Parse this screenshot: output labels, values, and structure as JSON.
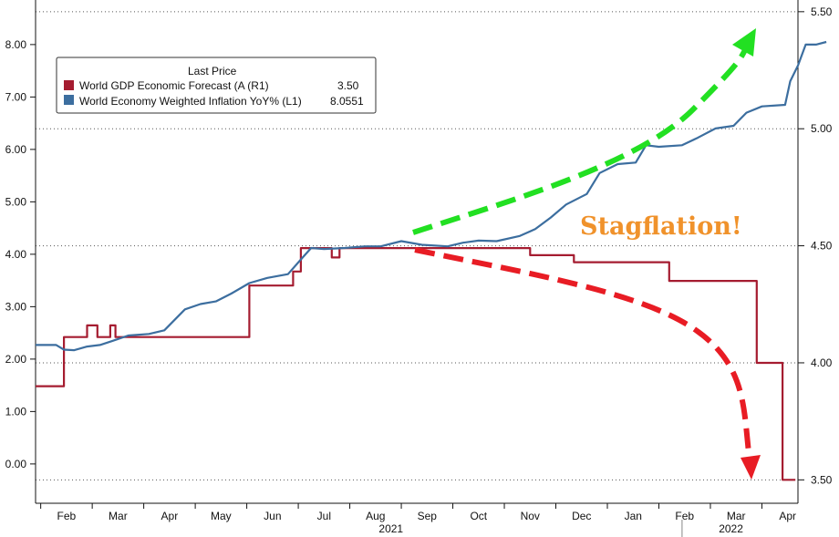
{
  "chart_data": {
    "type": "line",
    "legend": {
      "title": "Last Price",
      "placement": "top-left",
      "entries": [
        {
          "name": "World GDP Economic Forecast (A  (R1)",
          "value": "3.50",
          "color": "#a51c30"
        },
        {
          "name": "World Economy Weighted Inflation YoY%  (L1)",
          "value": "8.0551",
          "color": "#3c6e9f"
        }
      ]
    },
    "y_left": {
      "ticks": [
        "0.00",
        "1.00",
        "2.00",
        "3.00",
        "4.00",
        "5.00",
        "6.00",
        "7.00",
        "8.00"
      ],
      "range": [
        -0.75,
        8.85
      ]
    },
    "y_right": {
      "ticks": [
        "3.50",
        "4.00",
        "4.50",
        "5.00",
        "5.50"
      ],
      "range": [
        3.4,
        5.55
      ]
    },
    "x_axis": {
      "month_ticks": [
        "Feb",
        "Mar",
        "Apr",
        "May",
        "Jun",
        "Jul",
        "Aug",
        "Sep",
        "Oct",
        "Nov",
        "Dec",
        "Jan",
        "Feb",
        "Mar",
        "Apr"
      ],
      "years": [
        {
          "label": "2021",
          "month_index": 6.3
        },
        {
          "label": "2022",
          "month_index": 12.9
        }
      ],
      "range": [
        -0.6,
        14.2
      ],
      "year_divider_month": 11.95
    },
    "grid": {
      "horizontal_dotted": true,
      "vertical": false
    },
    "series": [
      {
        "name": "World GDP Economic Forecast (A  (R1)",
        "axis": "right",
        "color": "#a51c30",
        "step": true,
        "points": [
          [
            -0.6,
            3.9
          ],
          [
            -0.05,
            4.11
          ],
          [
            0.4,
            4.16
          ],
          [
            0.6,
            4.11
          ],
          [
            0.85,
            4.16
          ],
          [
            0.95,
            4.11
          ],
          [
            3.55,
            4.33
          ],
          [
            4.4,
            4.39
          ],
          [
            4.55,
            4.49
          ],
          [
            5.0,
            4.49
          ],
          [
            5.15,
            4.45
          ],
          [
            5.3,
            4.49
          ],
          [
            8.1,
            4.49
          ],
          [
            9.0,
            4.46
          ],
          [
            9.85,
            4.43
          ],
          [
            11.7,
            4.35
          ],
          [
            12.9,
            4.35
          ],
          [
            13.4,
            4.0
          ],
          [
            13.9,
            3.5
          ],
          [
            14.15,
            3.5
          ]
        ]
      },
      {
        "name": "World Economy Weighted Inflation YoY%  (L1)",
        "axis": "left",
        "color": "#3c6e9f",
        "step": false,
        "points": [
          [
            -0.6,
            2.27
          ],
          [
            -0.2,
            2.27
          ],
          [
            -0.05,
            2.18
          ],
          [
            0.15,
            2.17
          ],
          [
            0.4,
            2.24
          ],
          [
            0.65,
            2.27
          ],
          [
            0.9,
            2.35
          ],
          [
            1.2,
            2.45
          ],
          [
            1.6,
            2.48
          ],
          [
            1.9,
            2.55
          ],
          [
            2.1,
            2.75
          ],
          [
            2.3,
            2.95
          ],
          [
            2.6,
            3.05
          ],
          [
            2.9,
            3.1
          ],
          [
            3.2,
            3.25
          ],
          [
            3.55,
            3.45
          ],
          [
            3.9,
            3.55
          ],
          [
            4.3,
            3.62
          ],
          [
            4.55,
            3.9
          ],
          [
            4.75,
            4.12
          ],
          [
            5.0,
            4.1
          ],
          [
            5.4,
            4.12
          ],
          [
            5.8,
            4.15
          ],
          [
            6.1,
            4.15
          ],
          [
            6.5,
            4.25
          ],
          [
            6.9,
            4.18
          ],
          [
            7.4,
            4.15
          ],
          [
            7.7,
            4.22
          ],
          [
            8.0,
            4.26
          ],
          [
            8.35,
            4.25
          ],
          [
            8.8,
            4.35
          ],
          [
            9.1,
            4.48
          ],
          [
            9.4,
            4.7
          ],
          [
            9.7,
            4.95
          ],
          [
            10.1,
            5.15
          ],
          [
            10.35,
            5.55
          ],
          [
            10.7,
            5.72
          ],
          [
            11.05,
            5.75
          ],
          [
            11.25,
            6.08
          ],
          [
            11.5,
            6.05
          ],
          [
            11.95,
            6.08
          ],
          [
            12.25,
            6.22
          ],
          [
            12.6,
            6.4
          ],
          [
            12.95,
            6.45
          ],
          [
            13.2,
            6.7
          ],
          [
            13.5,
            6.82
          ],
          [
            13.95,
            6.85
          ],
          [
            14.05,
            7.3
          ],
          [
            14.2,
            7.6
          ],
          [
            14.35,
            8.0
          ],
          [
            14.55,
            8.0
          ],
          [
            14.75,
            8.05
          ]
        ]
      }
    ],
    "annotations": [
      {
        "text": "Stagflation!",
        "color": "#f0922b"
      },
      {
        "type": "arrow",
        "color": "#22e022",
        "direction": "up",
        "style": "dashed"
      },
      {
        "type": "arrow",
        "color": "#e81c24",
        "direction": "down",
        "style": "dashed"
      }
    ]
  }
}
